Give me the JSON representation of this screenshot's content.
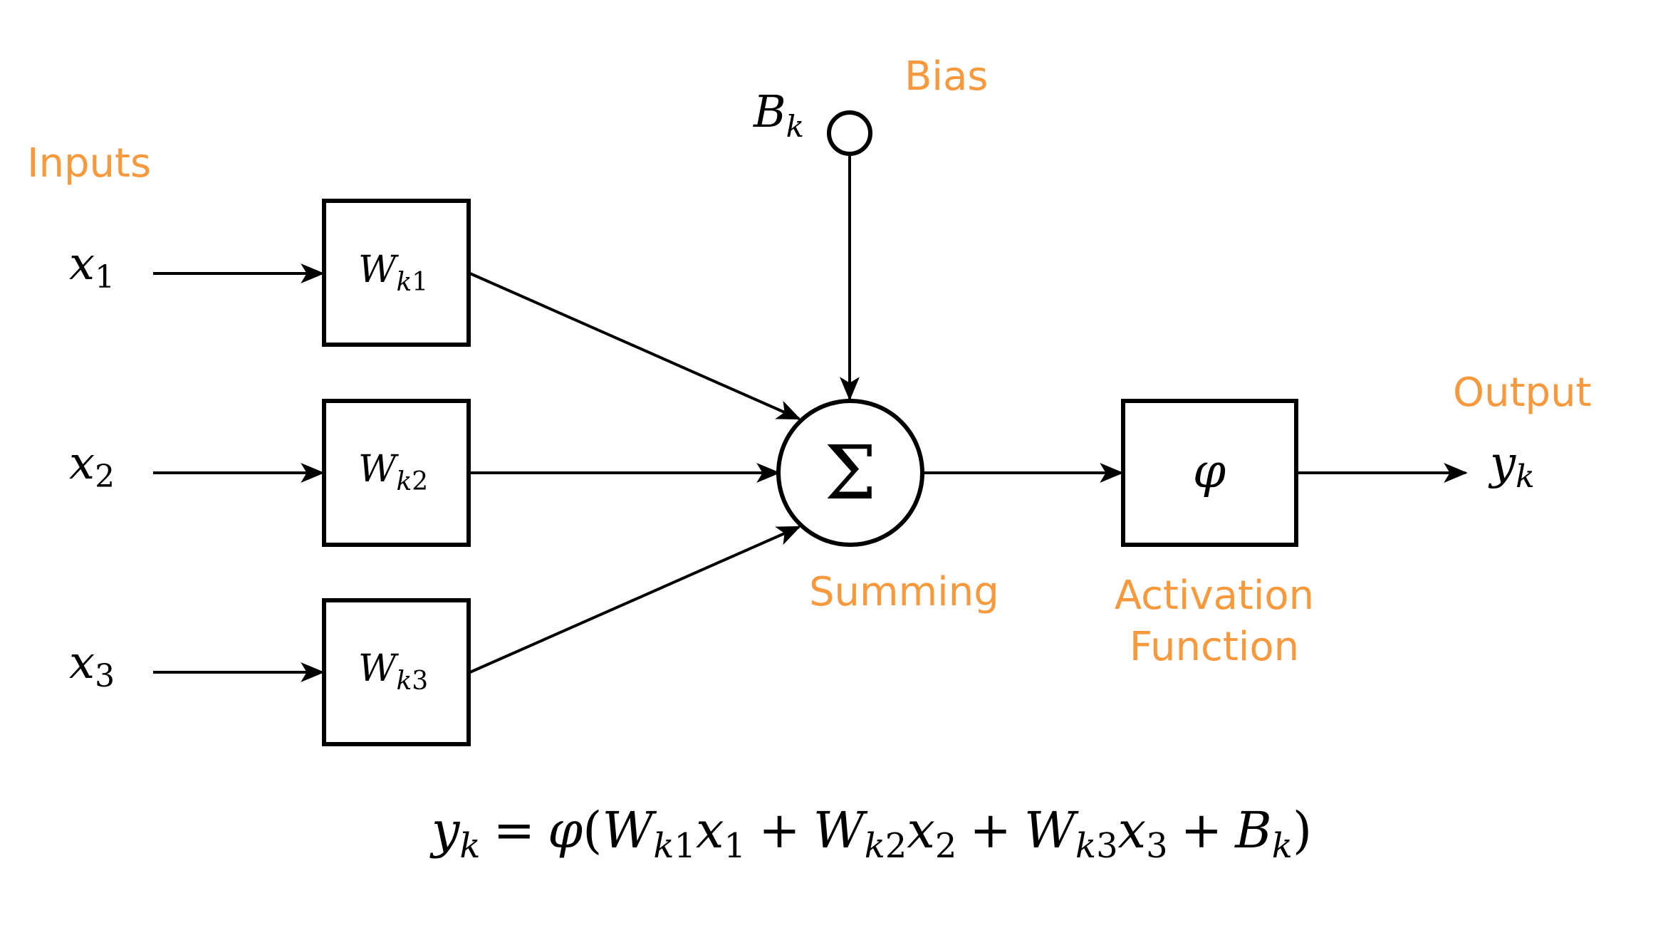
{
  "colors": {
    "ink": "#000000",
    "label": "#f7993c",
    "background": "#ffffff"
  },
  "labels": {
    "inputs": "Inputs",
    "bias": "Bias",
    "summing": "Summing",
    "activation_line1": "Activation",
    "activation_line2": "Function",
    "output": "Output"
  },
  "symbols": {
    "x": "x",
    "W": "W",
    "k": "k",
    "B": "B",
    "y": "y",
    "sum": "Σ",
    "phi": "φ",
    "one": "1",
    "two": "2",
    "three": "3",
    "eq": "=",
    "plus": "+",
    "lparen": "(",
    "rparen": ")"
  }
}
